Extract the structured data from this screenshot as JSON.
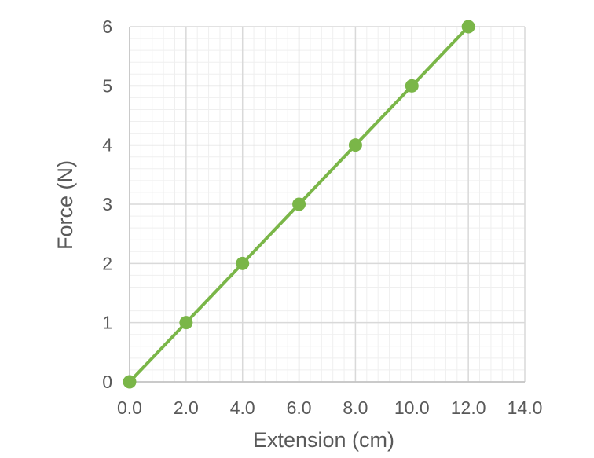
{
  "chart_data": {
    "type": "line",
    "title": "",
    "xlabel": "Extension (cm)",
    "ylabel": "Force (N)",
    "xlim": [
      0,
      14
    ],
    "ylim": [
      0,
      6
    ],
    "x_ticks": [
      0,
      2,
      4,
      6,
      8,
      10,
      12,
      14
    ],
    "x_tick_labels": [
      "0.0",
      "2.0",
      "4.0",
      "6.0",
      "8.0",
      "10.0",
      "12.0",
      "14.0"
    ],
    "y_ticks": [
      0,
      1,
      2,
      3,
      4,
      5,
      6
    ],
    "y_tick_labels": [
      "0",
      "1",
      "2",
      "3",
      "4",
      "5",
      "6"
    ],
    "grid": true,
    "minor_grid": true,
    "legend": "none",
    "series": [
      {
        "x": [
          0,
          2,
          4,
          6,
          8,
          10,
          12
        ],
        "y": [
          0,
          1,
          2,
          3,
          4,
          5,
          6
        ],
        "color": "#7ab648",
        "marker": "circle"
      }
    ]
  },
  "colors": {
    "major_grid": "#d9d9d9",
    "minor_grid": "#efefef",
    "axis_line": "#bfbfbf",
    "text": "#595959"
  }
}
